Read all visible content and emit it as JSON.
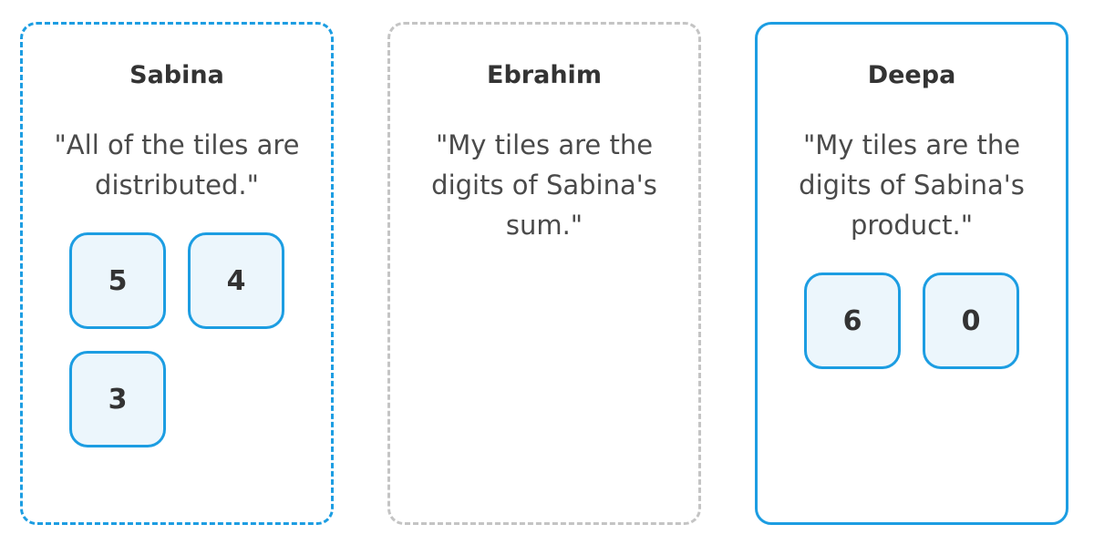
{
  "cards": [
    {
      "name": "Sabina",
      "quote": "\"All of the tiles are distributed.\"",
      "tiles": [
        "5",
        "4",
        "3"
      ]
    },
    {
      "name": "Ebrahim",
      "quote": "\"My tiles are the digits of Sabina's sum.\"",
      "tiles": []
    },
    {
      "name": "Deepa",
      "quote": "\"My tiles are the digits of Sabina's product.\"",
      "tiles": [
        "6",
        "0"
      ]
    }
  ],
  "colors": {
    "accent": "#1c9de2",
    "tile_fill": "#ecf6fc",
    "empty_border": "#c4c4c4"
  }
}
